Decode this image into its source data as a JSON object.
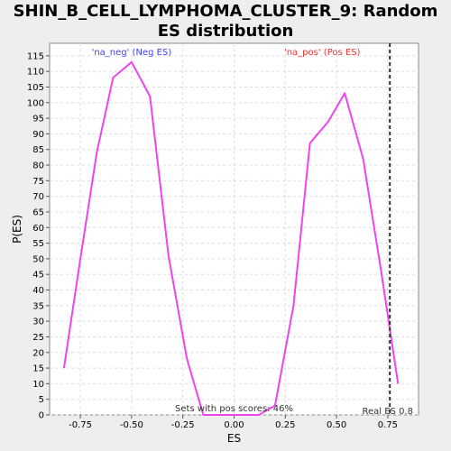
{
  "chart_data": {
    "type": "line",
    "title": "SHIN_B_CELL_LYMPHOMA_CLUSTER_9: Random ES distribution",
    "xlabel": "ES",
    "ylabel": "P(ES)",
    "xlim": [
      -0.9,
      0.9
    ],
    "ylim": [
      0,
      119
    ],
    "x_ticks": [
      -0.75,
      -0.5,
      -0.25,
      0.0,
      0.25,
      0.5,
      0.75
    ],
    "x_tick_labels": [
      "-0.75",
      "-0.50",
      "-0.25",
      "0.00",
      "0.25",
      "0.50",
      "0.75"
    ],
    "y_ticks": [
      0,
      5,
      10,
      15,
      20,
      25,
      30,
      35,
      40,
      45,
      50,
      55,
      60,
      65,
      70,
      75,
      80,
      85,
      90,
      95,
      100,
      105,
      110,
      115
    ],
    "grid": true,
    "series": [
      {
        "color": "#ee44ee",
        "x": [
          -0.83,
          -0.75,
          -0.67,
          -0.59,
          -0.5,
          -0.41,
          -0.32,
          -0.23,
          -0.15,
          -0.06,
          0.03,
          0.12,
          0.2,
          0.29,
          0.37,
          0.46,
          0.54,
          0.63,
          0.72,
          0.8
        ],
        "y": [
          15,
          50,
          84,
          108,
          113,
          102,
          51,
          18,
          0,
          0,
          0,
          0,
          3,
          35,
          87,
          94,
          103,
          82,
          45,
          10
        ]
      }
    ],
    "annotations": {
      "neg_label": "'na_neg' (Neg ES)",
      "neg_color": "#4040ff",
      "pos_label": "'na_pos' (Pos ES)",
      "pos_color": "#ee3333",
      "pos_scores_text": "Sets with pos scores: 46%",
      "real_es_text": "Real ES 0.8",
      "real_es_value": 0.76
    }
  }
}
